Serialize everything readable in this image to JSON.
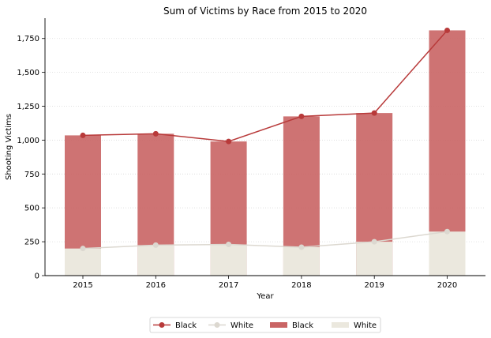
{
  "chart_data": {
    "type": "bar",
    "title": "Sum of Victims by Race from 2015 to 2020",
    "xlabel": "Year",
    "ylabel": "Shooting Victims",
    "categories": [
      "2015",
      "2016",
      "2017",
      "2018",
      "2019",
      "2020"
    ],
    "ylim": [
      0,
      1900
    ],
    "y_ticks": [
      0,
      250,
      500,
      750,
      1000,
      1250,
      1500,
      1750
    ],
    "y_tick_labels": [
      "0",
      "250",
      "500",
      "750",
      "1,000",
      "1,250",
      "1,500",
      "1,750"
    ],
    "grid": "horizontal dotted",
    "legend_position": "bottom-center",
    "series": [
      {
        "name": "Black",
        "kind": "line",
        "color": "#b83a3a",
        "values": [
          1035,
          1047,
          990,
          1175,
          1200,
          1810
        ]
      },
      {
        "name": "White",
        "kind": "line",
        "color": "#dcd8d0",
        "values": [
          200,
          225,
          230,
          210,
          250,
          325
        ]
      },
      {
        "name": "Black",
        "kind": "bar",
        "color": "#c96464",
        "values": [
          1035,
          1047,
          990,
          1175,
          1200,
          1810
        ]
      },
      {
        "name": "White",
        "kind": "bar",
        "color": "#ebe8de",
        "values": [
          200,
          225,
          230,
          210,
          250,
          325
        ]
      }
    ]
  }
}
